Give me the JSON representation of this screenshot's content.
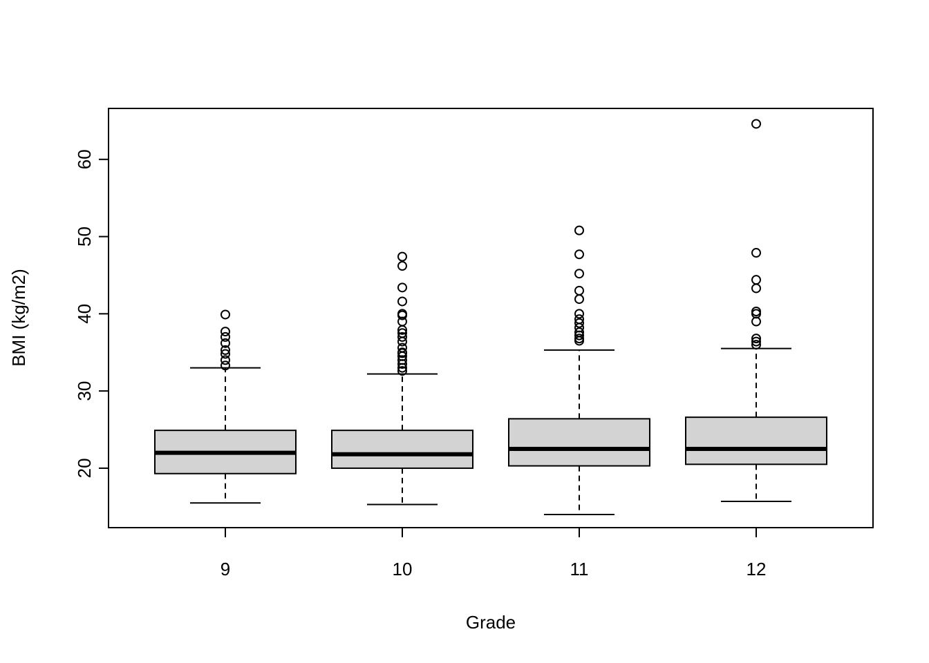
{
  "chart_data": {
    "type": "boxplot",
    "title": "",
    "xlabel": "Grade",
    "ylabel": "BMI (kg/m2)",
    "categories": [
      "9",
      "10",
      "11",
      "12"
    ],
    "ylim": [
      12.3,
      66.6
    ],
    "yticks": [
      20,
      30,
      40,
      50,
      60
    ],
    "grid": false,
    "colors": {
      "box_fill": "#d3d3d3",
      "stroke": "#000000",
      "background": "#ffffff"
    },
    "boxes": [
      {
        "category": "9",
        "whisker_low": 15.5,
        "q1": 19.3,
        "median": 22.0,
        "q3": 24.9,
        "whisker_high": 33.0,
        "outliers": [
          33.3,
          34.0,
          34.8,
          35.3,
          36.2,
          37.0,
          37.7,
          39.9
        ]
      },
      {
        "category": "10",
        "whisker_low": 15.3,
        "q1": 20.0,
        "median": 21.8,
        "q3": 24.9,
        "whisker_high": 32.2,
        "outliers": [
          32.6,
          33.0,
          33.5,
          34.0,
          34.5,
          34.9,
          35.0,
          35.6,
          36.4,
          37.0,
          37.5,
          37.9,
          39.0,
          39.8,
          40.0,
          41.6,
          43.4,
          46.2,
          47.4
        ]
      },
      {
        "category": "11",
        "whisker_low": 14.0,
        "q1": 20.3,
        "median": 22.5,
        "q3": 26.4,
        "whisker_high": 35.3,
        "outliers": [
          36.5,
          36.8,
          37.2,
          37.6,
          38.2,
          38.8,
          39.3,
          40.0,
          41.9,
          43.0,
          45.2,
          47.7,
          50.8
        ]
      },
      {
        "category": "12",
        "whisker_low": 15.7,
        "q1": 20.5,
        "median": 22.5,
        "q3": 26.6,
        "whisker_high": 35.5,
        "outliers": [
          36.0,
          36.4,
          36.8,
          39.0,
          40.0,
          40.3,
          43.3,
          44.4,
          47.9,
          64.6
        ]
      }
    ]
  }
}
